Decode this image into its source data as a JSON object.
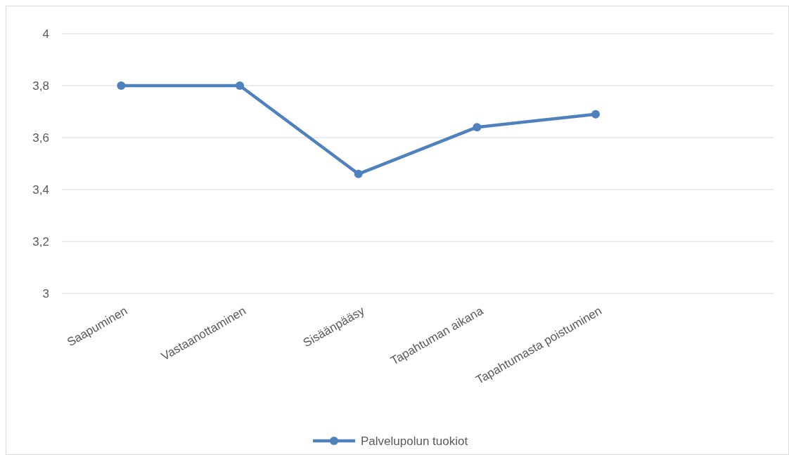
{
  "chart_data": {
    "type": "line",
    "categories": [
      "Saapuminen",
      "Vastaanottaminen",
      "Sisäänpääsy",
      "Tapahtuman aikana",
      "Tapahtumasta poistuminen",
      null
    ],
    "series": [
      {
        "name": "Palvelupolun tuokiot",
        "color": "#4f81bd",
        "values": [
          3.8,
          3.8,
          3.46,
          3.64,
          3.69,
          null
        ]
      }
    ],
    "ylim": [
      3,
      4
    ],
    "yticks": [
      {
        "value": 3,
        "label": "3"
      },
      {
        "value": 3.2,
        "label": "3,2"
      },
      {
        "value": 3.4,
        "label": "3,4"
      },
      {
        "value": 3.6,
        "label": "3,6"
      },
      {
        "value": 3.8,
        "label": "3,8"
      },
      {
        "value": 4,
        "label": "4"
      }
    ],
    "grid": "y",
    "legend": "bottom",
    "marker": "circle",
    "line_style": "solid"
  }
}
